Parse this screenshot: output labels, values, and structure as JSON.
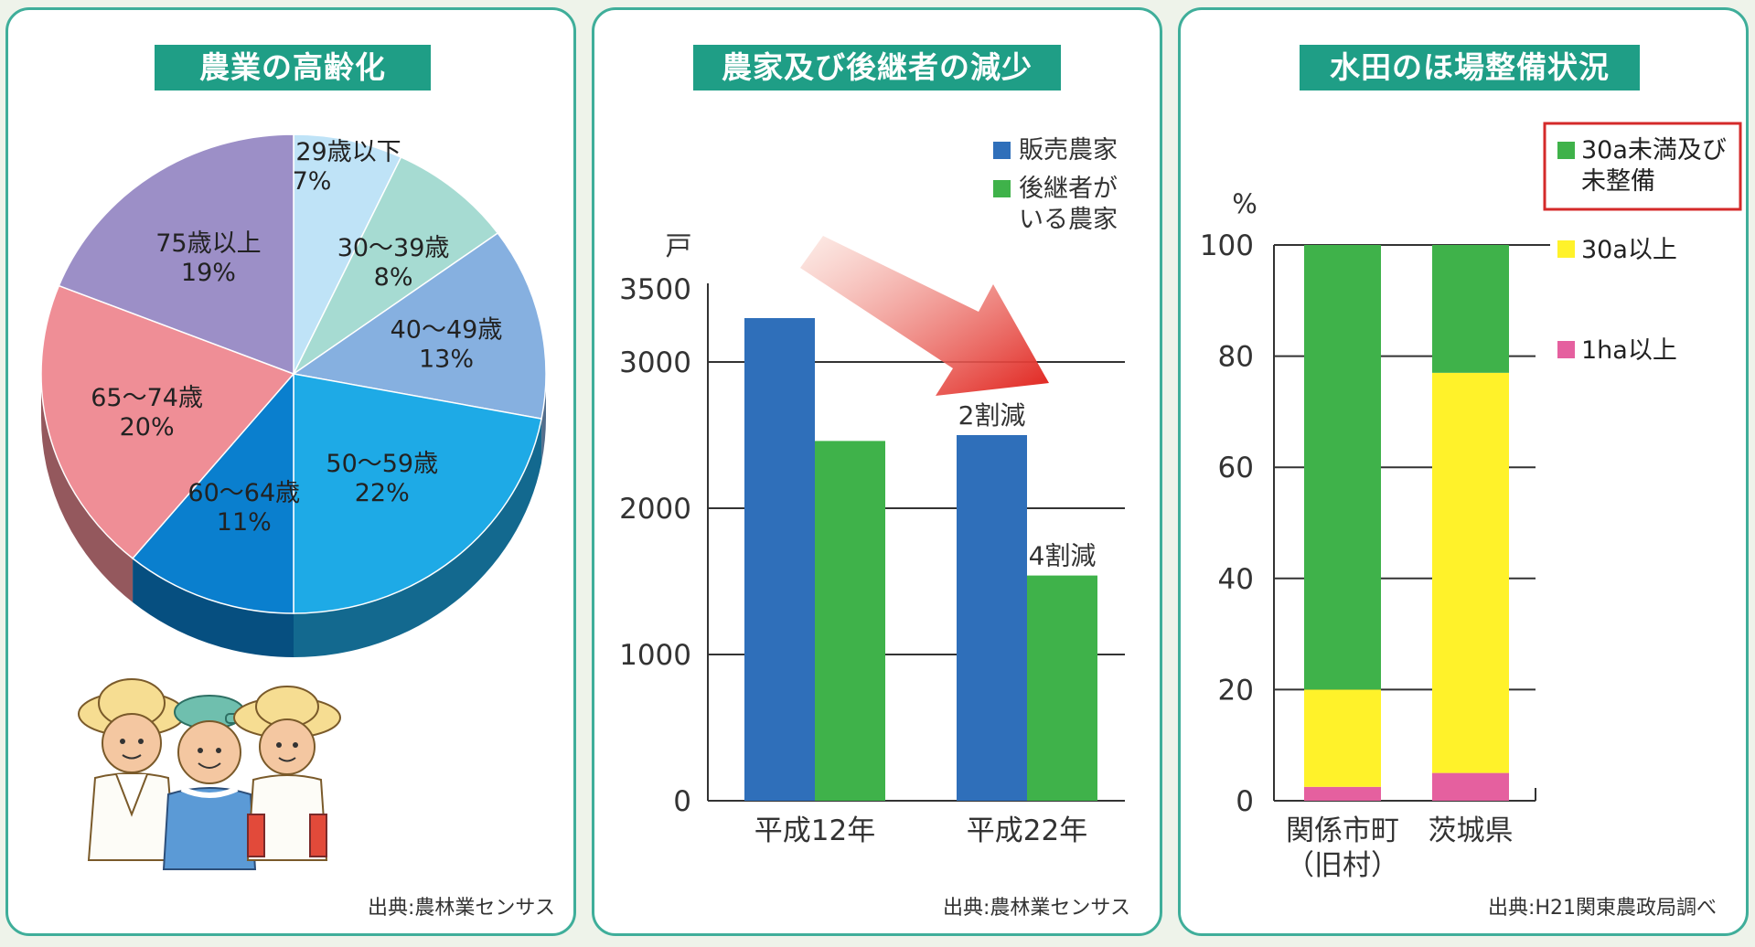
{
  "colors": {
    "panel_border": "#3fae9a",
    "title_bg": "#1f9e86",
    "blue": "#2f6fba",
    "green": "#3fb24a",
    "yellow": "#fff22a",
    "pink": "#e5609f",
    "highlight": "#d42a2a"
  },
  "panels": {
    "aging": {
      "title": "農業の高齢化",
      "source": "出典:農林業センサス",
      "illustration": "farmers-icon"
    },
    "farms": {
      "title": "農家及び後継者の減少",
      "source": "出典:農林業センサス",
      "unit_label": "戸",
      "annotations": [
        "2割減",
        "4割減"
      ],
      "arrow_icon": "decrease-arrow-icon"
    },
    "paddy": {
      "title": "水田のほ場整備状況",
      "source": "出典:H21関東農政局調べ",
      "unit_label": "%"
    }
  },
  "chart_data": [
    {
      "type": "pie",
      "title": "農業の高齢化",
      "slices": [
        {
          "label": "29歳以下",
          "value": 7,
          "value_label": "7%",
          "color": "#bfe3f7"
        },
        {
          "label": "30〜39歳",
          "value": 8,
          "value_label": "8%",
          "color": "#a6dbd2"
        },
        {
          "label": "40〜49歳",
          "value": 13,
          "value_label": "13%",
          "color": "#86b0e0"
        },
        {
          "label": "50〜59歳",
          "value": 22,
          "value_label": "22%",
          "color": "#1eaae6"
        },
        {
          "label": "60〜64歳",
          "value": 11,
          "value_label": "11%",
          "color": "#0a7fce"
        },
        {
          "label": "65〜74歳",
          "value": 20,
          "value_label": "20%",
          "color": "#ef8e96"
        },
        {
          "label": "75歳以上",
          "value": 19,
          "value_label": "19%",
          "color": "#9c8fc7"
        }
      ]
    },
    {
      "type": "bar",
      "title": "農家及び後継者の減少",
      "categories": [
        "平成12年",
        "平成22年"
      ],
      "series": [
        {
          "name": "販売農家",
          "values": [
            3300,
            2500
          ],
          "color": "#2f6fba"
        },
        {
          "name": "後継者がいる農家",
          "name_lines": [
            "後継者が",
            "いる農家"
          ],
          "values": [
            2460,
            1540
          ],
          "color": "#3fb24a"
        }
      ],
      "ylabel": "戸",
      "ylim": [
        0,
        3500
      ],
      "yticks": [
        0,
        1000,
        2000,
        3000,
        3500
      ],
      "grid": true,
      "legend": "top-right"
    },
    {
      "type": "bar",
      "stacked": true,
      "title": "水田のほ場整備状況",
      "categories": [
        "関係市町（旧村）",
        "茨城県"
      ],
      "category_lines": [
        [
          "関係市町",
          "（旧村）"
        ],
        [
          "茨城県"
        ]
      ],
      "series": [
        {
          "name": "1ha以上",
          "values": [
            2.5,
            5
          ],
          "color": "#e5609f"
        },
        {
          "name": "30a以上",
          "values": [
            17.5,
            72
          ],
          "color": "#fff22a"
        },
        {
          "name": "30a未満及び未整備",
          "name_lines": [
            "30a未満及び",
            "未整備"
          ],
          "values": [
            80,
            23
          ],
          "color": "#3fb24a",
          "highlighted": true
        }
      ],
      "ylabel": "%",
      "ylim": [
        0,
        100
      ],
      "yticks": [
        0,
        20,
        40,
        60,
        80,
        100
      ],
      "grid": true,
      "legend": "right"
    }
  ]
}
